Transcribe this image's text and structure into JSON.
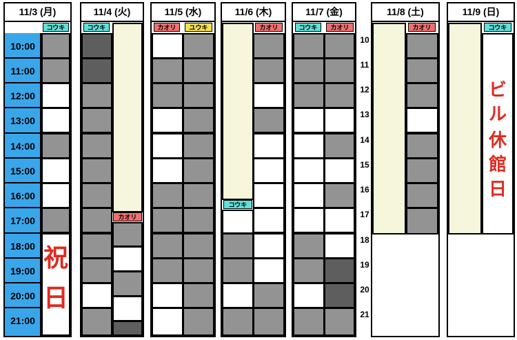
{
  "days": [
    {
      "label": "11/3 (月)"
    },
    {
      "label": "11/4 (火)"
    },
    {
      "label": "11/5 (水)"
    },
    {
      "label": "11/6 (木)"
    },
    {
      "label": "11/7 (金)"
    },
    {
      "label": "11/8 (土)"
    },
    {
      "label": "11/9 (日)"
    }
  ],
  "times": [
    "10:00",
    "11:00",
    "12:00",
    "13:00",
    "14:00",
    "15:00",
    "16:00",
    "17:00",
    "18:00",
    "19:00",
    "20:00",
    "21:00"
  ],
  "hour_marks": [
    "10",
    "11",
    "12",
    "13",
    "14",
    "15",
    "16",
    "17",
    "18",
    "19",
    "20",
    "21"
  ],
  "names": {
    "kouki": "コウキ",
    "kaori": "カオリ",
    "yuuki": "ユウキ"
  },
  "notes": {
    "holiday_1": "祝",
    "holiday_2": "日",
    "closed_1": "ビ",
    "closed_2": "ル",
    "closed_3": "休",
    "closed_4": "館",
    "closed_5": "日"
  },
  "colors": {
    "busy": "#939393",
    "busy_dark": "#5e5e5e",
    "free": "#ffffff",
    "time_column": "#39a6ea",
    "shift": "#f5f6dc",
    "kouki": "#5fe0d8",
    "kaori": "#f07070",
    "yuuki": "#f8e04a",
    "note_text": "#e02a1f"
  }
}
